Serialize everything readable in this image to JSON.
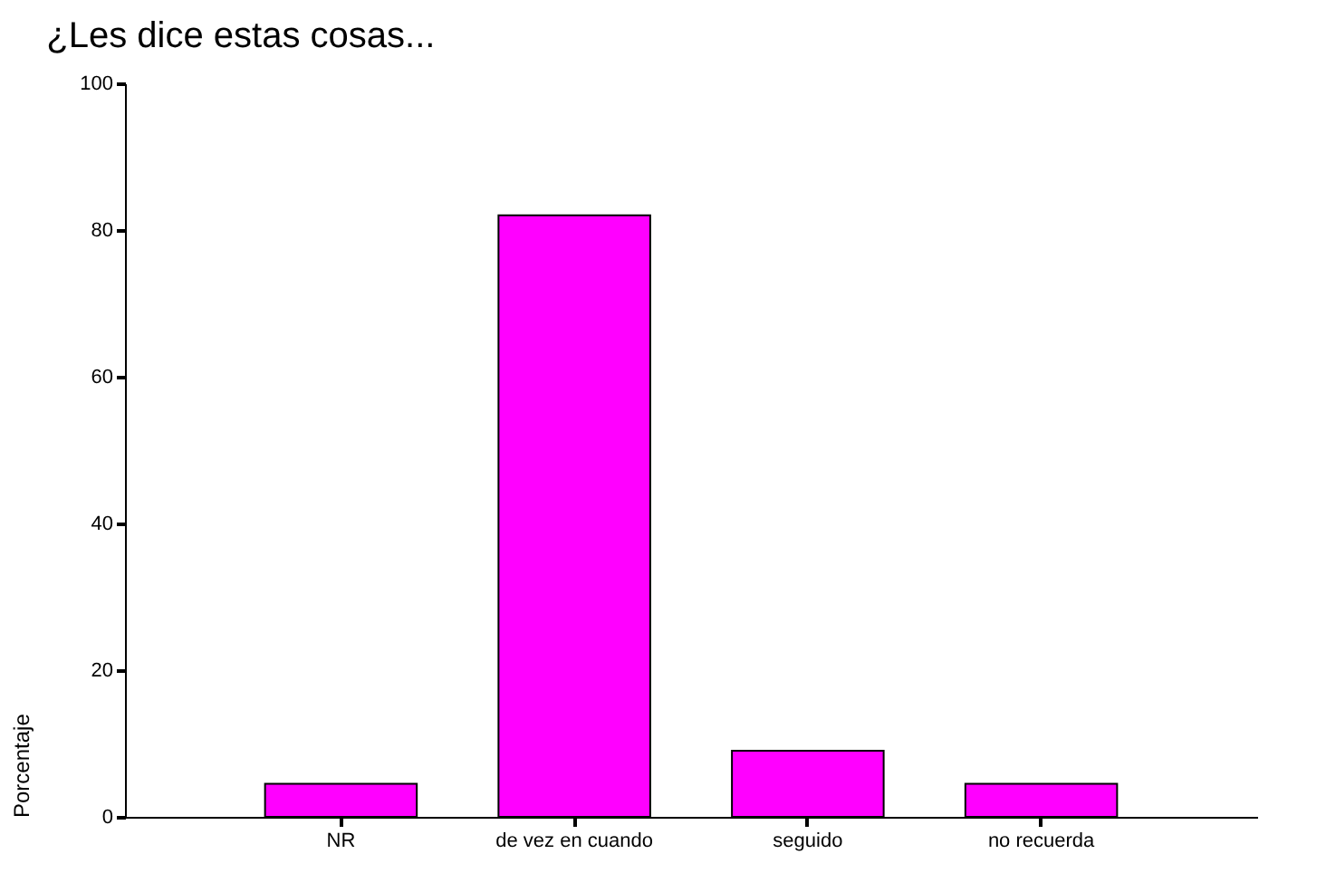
{
  "chart_data": {
    "type": "bar",
    "title": "¿Les dice estas cosas...",
    "ylabel": "Porcentaje",
    "categories": [
      "NR",
      "de vez en cuando",
      "seguido",
      "no  recuerda"
    ],
    "values": [
      4.5,
      82,
      9,
      4.5
    ],
    "color": "#ff00ff",
    "ylim": [
      0,
      100
    ],
    "yticks": [
      0,
      20,
      40,
      60,
      80,
      100
    ],
    "grid": false
  }
}
